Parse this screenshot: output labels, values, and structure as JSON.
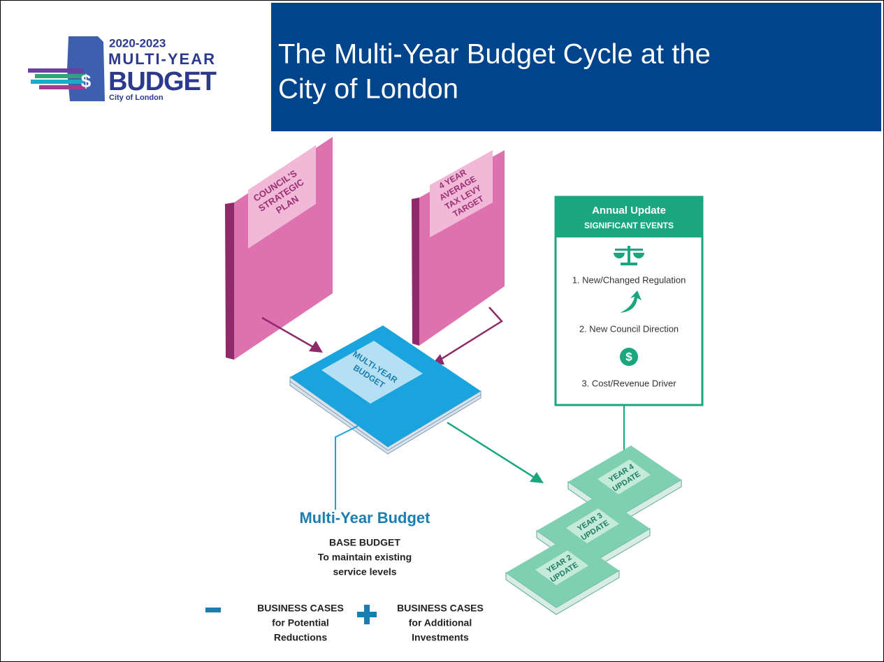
{
  "logo": {
    "years": "2020-2023",
    "line1": "MULTI-YEAR",
    "line2": "BUDGET",
    "symbol": "$",
    "city": "City of London"
  },
  "header": {
    "title_lines": [
      "The Multi-Year Budget Cycle at the",
      "City of London"
    ]
  },
  "books": {
    "strategic_plan": [
      "COUNCIL'S",
      "STRATEGIC",
      "PLAN"
    ],
    "tax_levy": [
      "4 YEAR",
      "AVERAGE",
      "TAX LEVY",
      "TARGET"
    ],
    "multi_year": [
      "MULTI-YEAR",
      "BUDGET"
    ]
  },
  "annual_update": {
    "title": "Annual Update",
    "subtitle": "SIGNIFICANT EVENTS",
    "events": [
      "1. New/Changed Regulation",
      "2. New Council Direction",
      "3. Cost/Revenue Driver"
    ],
    "cost_icon": "$"
  },
  "updates": [
    [
      "YEAR 4",
      "UPDATE"
    ],
    [
      "YEAR 3",
      "UPDATE"
    ],
    [
      "YEAR 2",
      "UPDATE"
    ]
  ],
  "summary": {
    "title": "Multi-Year Budget",
    "base": "BASE BUDGET",
    "base_lines": [
      "To maintain existing",
      "service levels"
    ],
    "minus": {
      "heading": "BUSINESS CASES",
      "lines": [
        "for Potential",
        "Reductions"
      ]
    },
    "plus": {
      "heading": "BUSINESS CASES",
      "lines": [
        "for Additional",
        "Investments"
      ]
    }
  }
}
